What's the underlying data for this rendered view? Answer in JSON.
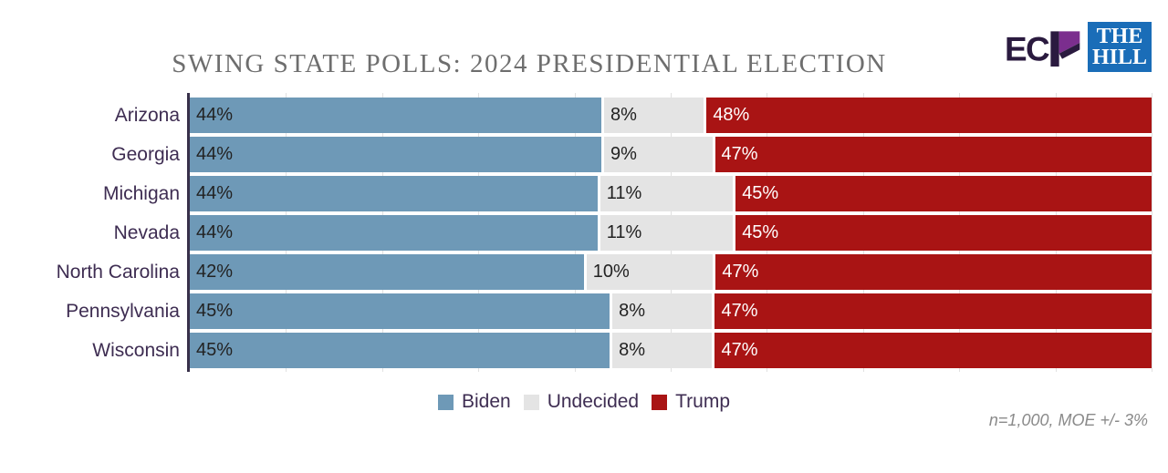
{
  "title": "SWING STATE POLLS: 2024 PRESIDENTIAL ELECTION",
  "logos": {
    "ecp": {
      "text_ec": "EC",
      "p_glyph": "stylized-P",
      "colors": {
        "dark": "#2a1a3f",
        "purple": "#7b2e8e"
      }
    },
    "hill": {
      "line1": "THE",
      "line2": "HILL",
      "bg_color": "#1a6db8"
    }
  },
  "chart_data": {
    "type": "bar",
    "stacked": true,
    "orientation": "horizontal",
    "title": "SWING STATE POLLS: 2024 PRESIDENTIAL ELECTION",
    "categories": [
      "Arizona",
      "Georgia",
      "Michigan",
      "Nevada",
      "North Carolina",
      "Pennsylvania",
      "Wisconsin"
    ],
    "series": [
      {
        "name": "Biden",
        "color": "#6e99b7",
        "label_color": "#222222",
        "values": [
          44,
          44,
          44,
          44,
          42,
          45,
          45
        ]
      },
      {
        "name": "Undecided",
        "color": "#e4e4e4",
        "label_color": "#222222",
        "values": [
          8,
          9,
          11,
          11,
          10,
          8,
          8
        ]
      },
      {
        "name": "Trump",
        "color": "#a91414",
        "label_color": "#ffffff",
        "values": [
          48,
          47,
          45,
          45,
          47,
          47,
          47
        ]
      }
    ],
    "value_suffix": "%",
    "xlim": [
      0,
      100
    ],
    "gridline_interval_pct": 10,
    "grid": true,
    "legend_position": "bottom-center"
  },
  "footnote": "n=1,000, MOE +/- 3%"
}
